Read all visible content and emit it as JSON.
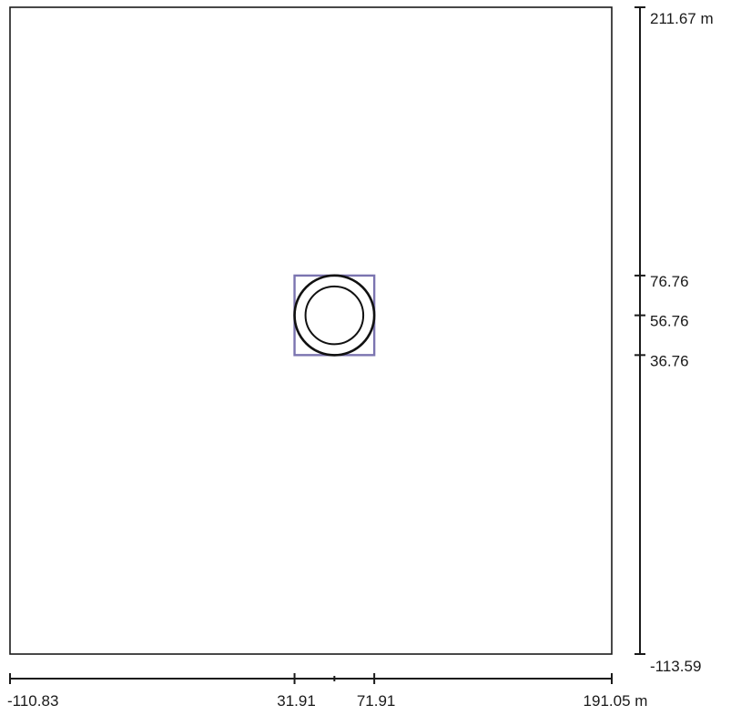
{
  "x_axis": {
    "unit": "m",
    "min": -110.83,
    "max": 191.05,
    "ticks": [
      {
        "value": -110.83,
        "label": "-110.83"
      },
      {
        "value": 31.91,
        "label": "31.91"
      },
      {
        "value": 51.91,
        "label": ""
      },
      {
        "value": 71.91,
        "label": "71.91"
      },
      {
        "value": 191.05,
        "label": "191.05 m"
      }
    ]
  },
  "y_axis": {
    "unit": "m",
    "min": -113.59,
    "max": 211.67,
    "ticks": [
      {
        "value": 211.67,
        "label": "211.67 m"
      },
      {
        "value": 76.76,
        "label": "76.76"
      },
      {
        "value": 56.76,
        "label": "56.76"
      },
      {
        "value": 36.76,
        "label": "36.76"
      },
      {
        "value": -113.59,
        "label": "-113.59"
      }
    ]
  },
  "objects": {
    "square": {
      "x_min": 31.91,
      "x_max": 71.91,
      "y_min": 36.76,
      "y_max": 76.76,
      "color": "#7b74b0"
    },
    "outer_circle": {
      "cx": 51.91,
      "cy": 56.76,
      "r": 20.0
    },
    "inner_circle": {
      "cx": 51.91,
      "cy": 56.76,
      "r": 14.5
    }
  }
}
